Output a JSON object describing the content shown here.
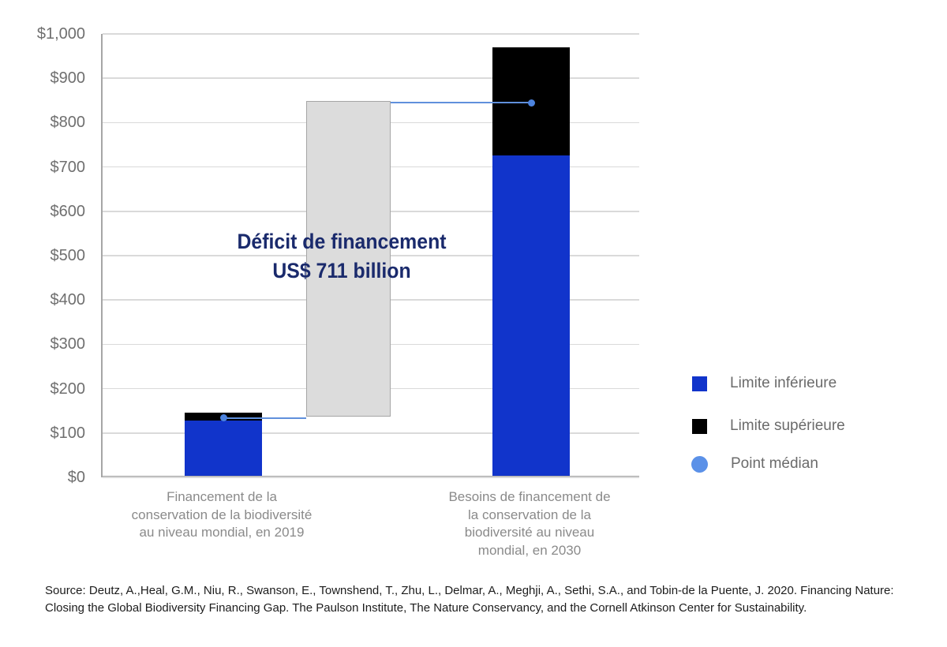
{
  "page": {
    "background": "#ffffff"
  },
  "chart_data": {
    "type": "bar",
    "title": "",
    "ylim": [
      0,
      1000
    ],
    "grid": "horizontal",
    "y_ticks": [
      0,
      100,
      200,
      300,
      400,
      500,
      600,
      700,
      800,
      900,
      1000
    ],
    "y_tick_labels": [
      "$0",
      "$100",
      "$200",
      "$300",
      "$400",
      "$500",
      "$600",
      "$700",
      "$800",
      "$900",
      "$1,000"
    ],
    "categories": [
      "Financement de la conservation de la biodiversité au niveau mondial, en 2019",
      "Besoins de financement de la conservation de la biodiversité au niveau mondial, en 2030"
    ],
    "series": [
      {
        "name": "Limite inférieure",
        "values": [
          124,
          722
        ],
        "color": "#1134cb"
      },
      {
        "name": "Limite supérieure",
        "values": [
          143,
          967
        ],
        "color": "#000000"
      },
      {
        "name": "Point médian",
        "values": [
          133.5,
          844.5
        ],
        "color": "#4c83de"
      }
    ],
    "bars": [
      {
        "name": "financement-2019",
        "lower": 124,
        "upper": 143,
        "median": 133.5,
        "label_lines": [
          "Financement de la",
          "conservation de la biodiversité",
          "au niveau mondial, en 2019"
        ]
      },
      {
        "name": "besoins-2030",
        "lower": 722,
        "upper": 967,
        "median": 844.5,
        "label_lines": [
          "Besoins de financement de",
          "la conservation de la",
          "biodiversité au niveau",
          "mondial, en 2030"
        ]
      }
    ],
    "gap_bar": {
      "from": 133.5,
      "to": 844.5,
      "value": 711,
      "annotation_lines": [
        "Déficit de financement",
        "US$ 711 billion"
      ],
      "color": "#dcdcdc"
    },
    "legend": {
      "position": "right",
      "items": [
        {
          "label": "Limite inférieure",
          "swatch": "square",
          "color": "#1134cb"
        },
        {
          "label": "Limite supérieure",
          "swatch": "square",
          "color": "#000000"
        },
        {
          "label": "Point médian",
          "swatch": "circle",
          "color": "#5b91e8"
        }
      ]
    }
  },
  "source": {
    "line1": "Source: Deutz, A.,Heal, G.M., Niu, R., Swanson, E., Townshend, T., Zhu, L., Delmar, A., Meghji, A., Sethi, S.A., and Tobin-de la Puente, J. 2020. Financing Nature:",
    "line2": "Closing the Global Biodiversity Financing Gap. The Paulson Institute, The Nature Conservancy, and the Cornell Atkinson Center for Sustainability."
  },
  "colors": {
    "lower_bound_blue": "#1134cb",
    "upper_bound_black": "#000000",
    "median_dot_blue": "#4c83de",
    "legend_circle_blue": "#5b91e8",
    "connector_blue": "#6090dc",
    "gap_gray": "#dcdcdc",
    "gap_border_gray": "#a6a6a6",
    "gridline": "#dadada",
    "axis": "#a6a6a6",
    "y_label_gray": "#6f6f6f",
    "x_label_gray": "#8a8a8a",
    "legend_text_gray": "#6b6b6b",
    "annotation_navy": "#1a2a6c",
    "source_text": "#1c1c1c"
  }
}
